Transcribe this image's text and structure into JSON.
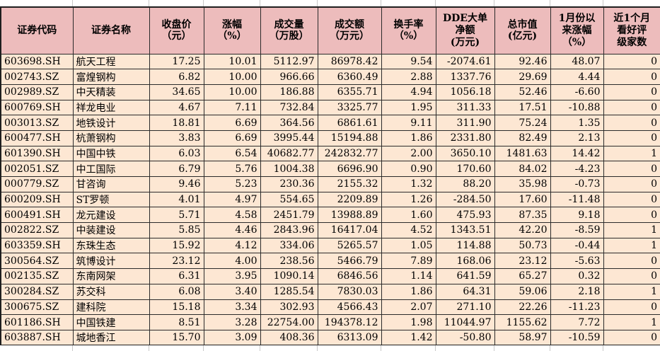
{
  "colors": {
    "header_bg": "#edbcbc",
    "row_bg": "#fde7d3",
    "grid_border": "#2b2b2b",
    "outer_border": "#1f1f1f",
    "sheet_gridline": "#c9c9c9",
    "text": "#000000"
  },
  "table": {
    "columns": [
      {
        "key": "code",
        "label": "证券代码",
        "align": "left"
      },
      {
        "key": "name",
        "label": "证券名称",
        "align": "left"
      },
      {
        "key": "close",
        "label": "收盘价\n（元）",
        "align": "right"
      },
      {
        "key": "change_pct",
        "label": "涨幅\n（%）",
        "align": "right"
      },
      {
        "key": "volume",
        "label": "成交量\n（万股）",
        "align": "right"
      },
      {
        "key": "turnover",
        "label": "成交额\n（万元）",
        "align": "right"
      },
      {
        "key": "turn_rate",
        "label": "换手率\n（%）",
        "align": "right"
      },
      {
        "key": "dde_net",
        "label": "DDE大单\n净额\n(万元)",
        "align": "right"
      },
      {
        "key": "market_cap",
        "label": "总市值\n(亿元)",
        "align": "right"
      },
      {
        "key": "ytd_jan",
        "label": "1月份以\n来涨幅\n（%）",
        "align": "right"
      },
      {
        "key": "rating_cnt",
        "label": "近1个月\n看好评\n级家数",
        "align": "right"
      }
    ],
    "rows": [
      [
        "603698.SH",
        "航天工程",
        "17.25",
        "10.01",
        "5112.97",
        "86978.42",
        "9.54",
        "-2074.61",
        "92.46",
        "48.07",
        "0"
      ],
      [
        "002743.SZ",
        "富煌钢构",
        "6.82",
        "10.00",
        "966.66",
        "6360.49",
        "2.88",
        "1337.76",
        "29.69",
        "4.44",
        "0"
      ],
      [
        "002989.SZ",
        "中天精装",
        "34.65",
        "10.00",
        "186.88",
        "6355.71",
        "4.94",
        "1056.18",
        "52.46",
        "-6.60",
        "0"
      ],
      [
        "600769.SH",
        "祥龙电业",
        "4.67",
        "7.11",
        "732.84",
        "3325.77",
        "1.95",
        "311.33",
        "17.51",
        "-10.88",
        "0"
      ],
      [
        "003013.SZ",
        "地铁设计",
        "18.81",
        "6.69",
        "364.56",
        "6861.61",
        "9.11",
        "311.90",
        "75.24",
        "1.35",
        "0"
      ],
      [
        "600477.SH",
        "杭萧钢构",
        "3.83",
        "6.69",
        "3995.44",
        "15194.88",
        "1.86",
        "2331.80",
        "82.49",
        "2.13",
        "0"
      ],
      [
        "601390.SH",
        "中国中铁",
        "6.03",
        "6.54",
        "40682.77",
        "242832.77",
        "2.00",
        "3650.10",
        "1481.63",
        "14.42",
        "1"
      ],
      [
        "002051.SZ",
        "中工国际",
        "6.79",
        "5.76",
        "1004.38",
        "6696.90",
        "0.90",
        "170.60",
        "84.02",
        "-4.23",
        "0"
      ],
      [
        "000779.SZ",
        "甘咨询",
        "9.46",
        "5.23",
        "230.36",
        "2155.32",
        "1.32",
        "88.20",
        "35.98",
        "-0.73",
        "0"
      ],
      [
        "600209.SH",
        "ST罗顿",
        "4.01",
        "4.97",
        "554.65",
        "2209.89",
        "1.26",
        "-284.50",
        "17.60",
        "-11.48",
        "0"
      ],
      [
        "600491.SH",
        "龙元建设",
        "5.71",
        "4.58",
        "2451.79",
        "13988.89",
        "1.60",
        "475.93",
        "87.35",
        "9.18",
        "0"
      ],
      [
        "002822.SZ",
        "中装建设",
        "5.85",
        "4.46",
        "2843.96",
        "16417.04",
        "4.52",
        "1343.51",
        "42.20",
        "-8.59",
        "1"
      ],
      [
        "603359.SH",
        "东珠生态",
        "15.92",
        "4.12",
        "334.06",
        "5265.57",
        "1.05",
        "114.88",
        "50.73",
        "-0.44",
        "1"
      ],
      [
        "300564.SZ",
        "筑博设计",
        "23.12",
        "4.00",
        "238.56",
        "5466.79",
        "7.89",
        "168.06",
        "23.12",
        "-5.63",
        "0"
      ],
      [
        "002135.SZ",
        "东南网架",
        "6.31",
        "3.95",
        "1090.14",
        "6846.56",
        "1.14",
        "641.59",
        "65.27",
        "0.32",
        "0"
      ],
      [
        "300284.SZ",
        "苏交科",
        "6.08",
        "3.40",
        "1285.54",
        "7830.03",
        "1.86",
        "64.31",
        "59.06",
        "2.18",
        "1"
      ],
      [
        "300675.SZ",
        "建科院",
        "15.18",
        "3.34",
        "302.93",
        "4566.43",
        "2.07",
        "271.10",
        "22.26",
        "-11.23",
        "0"
      ],
      [
        "601186.SH",
        "中国铁建",
        "8.51",
        "3.28",
        "22754.00",
        "194378.12",
        "1.98",
        "11044.97",
        "1155.62",
        "7.72",
        "1"
      ],
      [
        "603887.SH",
        "城地香江",
        "15.70",
        "3.09",
        "408.36",
        "6313.09",
        "1.42",
        "-50.80",
        "58.97",
        "-10.59",
        "0"
      ]
    ]
  }
}
